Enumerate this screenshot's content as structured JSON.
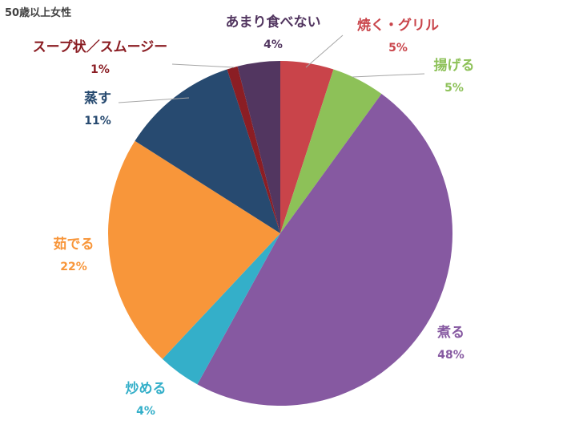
{
  "chart_data": {
    "type": "pie",
    "title": "50歳以上女性",
    "slices": [
      {
        "label": "焼く・グリル",
        "value": 5,
        "value_label": "5%",
        "color": "#C9444A"
      },
      {
        "label": "揚げる",
        "value": 5,
        "value_label": "5%",
        "color": "#8DC158"
      },
      {
        "label": "煮る",
        "value": 48,
        "value_label": "48%",
        "color": "#8659A1"
      },
      {
        "label": "炒める",
        "value": 4,
        "value_label": "4%",
        "color": "#34AFC9"
      },
      {
        "label": "茹でる",
        "value": 22,
        "value_label": "22%",
        "color": "#F8963A"
      },
      {
        "label": "蒸す",
        "value": 11,
        "value_label": "11%",
        "color": "#274A70"
      },
      {
        "label": "スープ状／スムージー",
        "value": 1,
        "value_label": "1%",
        "color": "#8B1E24"
      },
      {
        "label": "あまり食べない",
        "value": 4,
        "value_label": "4%",
        "color": "#523660"
      }
    ]
  }
}
